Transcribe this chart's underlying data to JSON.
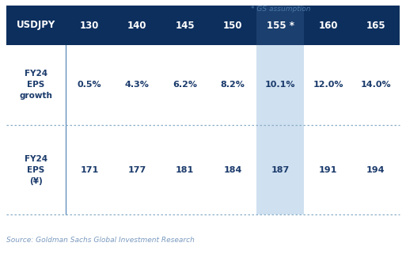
{
  "annotation": "* GS assumption",
  "header_label": "USDJPY",
  "columns": [
    "130",
    "140",
    "145",
    "150",
    "155 *",
    "160",
    "165"
  ],
  "row1_label": "FY24\nEPS\ngrowth",
  "row1_values": [
    "0.5%",
    "4.3%",
    "6.2%",
    "8.2%",
    "10.1%",
    "12.0%",
    "14.0%"
  ],
  "row2_label": "FY24\nEPS\n(¥)",
  "row2_values": [
    "171",
    "177",
    "181",
    "184",
    "187",
    "191",
    "194"
  ],
  "source": "Source: Goldman Sachs Global Investment Research",
  "header_bg": "#0d2f5e",
  "header_text": "#ffffff",
  "highlight_col_idx": 4,
  "highlight_bg": "#cfe0f0",
  "highlight_header_bg": "#1b3f6e",
  "body_bg": "#ffffff",
  "body_text": "#1a3a6b",
  "divider_color": "#8aafc8",
  "label_col_border": "#4a7fb5",
  "source_color": "#7a9abf",
  "annotation_color": "#4a7aaa"
}
